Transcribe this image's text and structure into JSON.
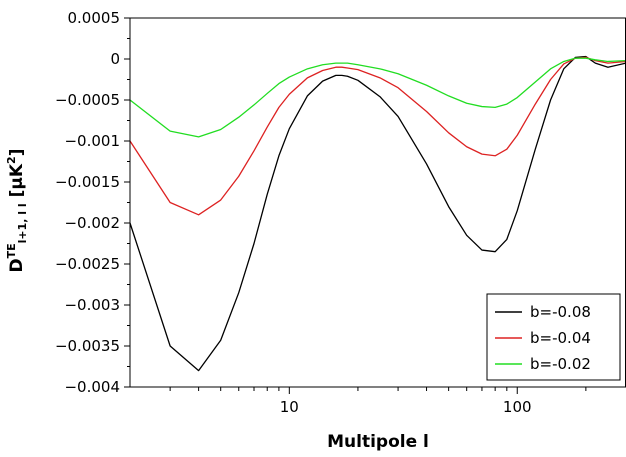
{
  "chart_data": {
    "type": "line",
    "xlabel": "Multipole l",
    "ylabel_main": "D",
    "ylabel_sup": "TE",
    "ylabel_sub": "l+1, l l",
    "ylabel_unit_open": " [μK",
    "ylabel_unit_sup": "2",
    "ylabel_unit_close": "]",
    "xscale": "log",
    "xlim": [
      2,
      300
    ],
    "ylim": [
      -0.004,
      0.0005
    ],
    "x_ticks": [
      10,
      100
    ],
    "x_tick_labels": [
      "10",
      "100"
    ],
    "y_ticks": [
      0.0005,
      0,
      -0.0005,
      -0.001,
      -0.0015,
      -0.002,
      -0.0025,
      -0.003,
      -0.0035,
      -0.004
    ],
    "y_tick_labels": [
      "0.0005",
      "0",
      "−0.0005",
      "−0.001",
      "−0.0015",
      "−0.002",
      "−0.0025",
      "−0.003",
      "−0.0035",
      "−0.004"
    ],
    "grid": false,
    "legend_position": "bottom-right",
    "x": [
      2,
      3,
      4,
      5,
      6,
      7,
      8,
      9,
      10,
      12,
      14,
      16,
      17,
      18,
      20,
      25,
      30,
      40,
      50,
      60,
      70,
      80,
      90,
      100,
      120,
      140,
      160,
      180,
      200,
      220,
      250,
      300
    ],
    "series": [
      {
        "name": "b=-0.08",
        "color": "#000000",
        "values": [
          -0.002,
          -0.0035,
          -0.0038,
          -0.00343,
          -0.00285,
          -0.00225,
          -0.00165,
          -0.00118,
          -0.00085,
          -0.00045,
          -0.00027,
          -0.0002,
          -0.0002,
          -0.00021,
          -0.00026,
          -0.00046,
          -0.0007,
          -0.00128,
          -0.0018,
          -0.00215,
          -0.00233,
          -0.00235,
          -0.0022,
          -0.00185,
          -0.0011,
          -0.0005,
          -0.00012,
          2e-05,
          3e-05,
          -5e-05,
          -0.0001,
          -5e-05
        ]
      },
      {
        "name": "b=-0.04",
        "color": "#dd2222",
        "values": [
          -0.001,
          -0.00175,
          -0.0019,
          -0.00172,
          -0.00143,
          -0.00112,
          -0.00083,
          -0.00059,
          -0.00043,
          -0.00023,
          -0.00014,
          -0.0001,
          -0.0001,
          -0.00011,
          -0.00013,
          -0.00023,
          -0.00035,
          -0.00064,
          -0.0009,
          -0.00107,
          -0.00116,
          -0.00118,
          -0.0011,
          -0.00093,
          -0.00055,
          -0.00025,
          -6e-05,
          1e-05,
          2e-05,
          -2e-05,
          -5e-05,
          -3e-05
        ]
      },
      {
        "name": "b=-0.02",
        "color": "#22dd22",
        "values": [
          -0.0005,
          -0.00088,
          -0.00095,
          -0.00086,
          -0.00071,
          -0.00056,
          -0.00042,
          -0.0003,
          -0.00022,
          -0.00012,
          -7e-05,
          -5e-05,
          -5e-05,
          -5e-05,
          -7e-05,
          -0.00012,
          -0.00018,
          -0.00032,
          -0.00045,
          -0.00054,
          -0.00058,
          -0.00059,
          -0.00055,
          -0.00047,
          -0.00028,
          -0.00012,
          -3e-05,
          1e-05,
          1e-05,
          -1e-05,
          -3e-05,
          -2e-05
        ]
      }
    ]
  }
}
